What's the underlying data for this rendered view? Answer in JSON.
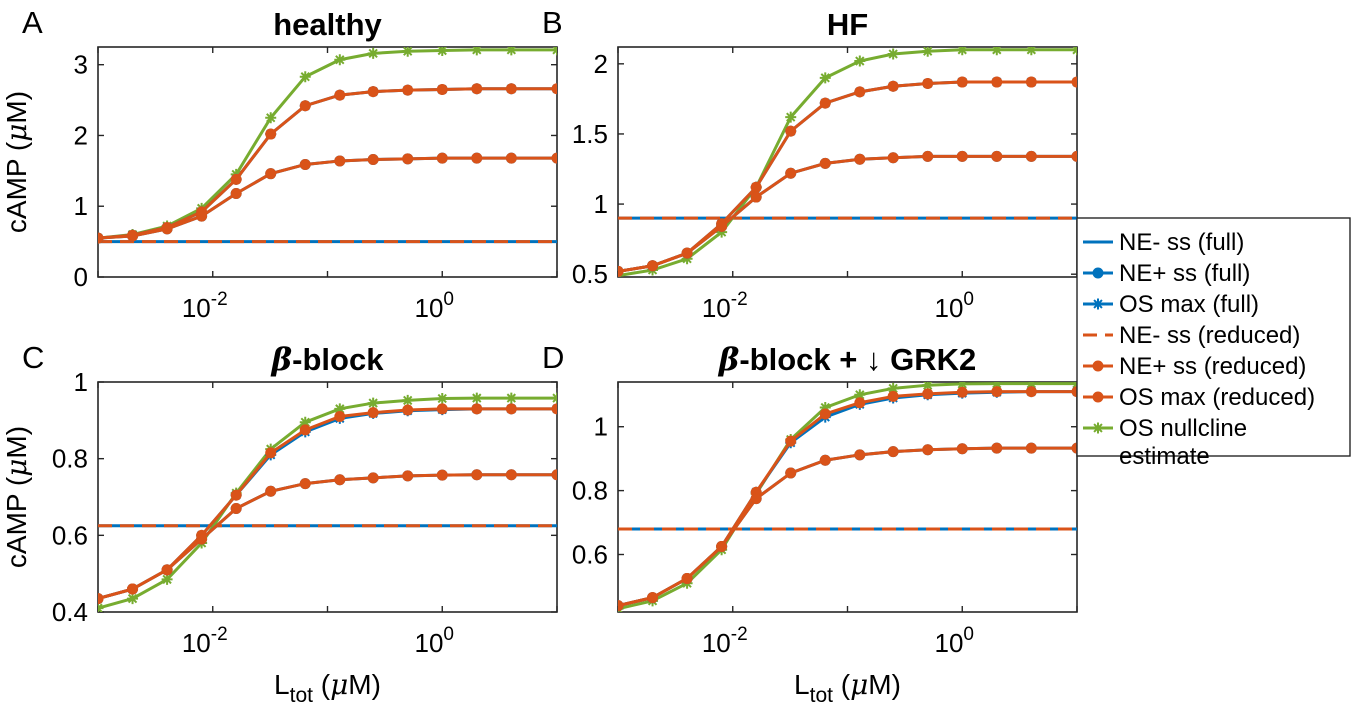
{
  "chart_data": [
    {
      "type": "line",
      "panel_letter": "A",
      "title": "healthy",
      "xscale": "log",
      "xlim": [
        0.001,
        10
      ],
      "ylim": [
        0,
        3.25
      ],
      "xticks": [
        0.01,
        1
      ],
      "xtick_labels": [
        {
          "base": "10",
          "exp": "-2"
        },
        {
          "base": "10",
          "exp": "0"
        }
      ],
      "yticks": [
        0,
        1,
        2,
        3
      ],
      "ytick_labels": [
        "0",
        "1",
        "2",
        "3"
      ],
      "ylabel": {
        "pre": "cAMP (",
        "greek": "μ",
        "post": "M)"
      },
      "xlabel": null,
      "x": [
        0.001,
        0.002,
        0.004,
        0.008,
        0.016,
        0.032,
        0.064,
        0.128,
        0.25,
        0.5,
        1,
        2,
        4,
        10
      ],
      "series": [
        {
          "key": "ne_minus_full",
          "values": [
            0.5,
            0.5,
            0.5,
            0.5,
            0.5,
            0.5,
            0.5,
            0.5,
            0.5,
            0.5,
            0.5,
            0.5,
            0.5,
            0.5
          ]
        },
        {
          "key": "ne_plus_full",
          "values": [
            0.55,
            0.58,
            0.68,
            0.86,
            1.18,
            1.46,
            1.59,
            1.64,
            1.66,
            1.67,
            1.68,
            1.68,
            1.68,
            1.68
          ]
        },
        {
          "key": "os_max_full",
          "values": [
            0.55,
            0.59,
            0.7,
            0.92,
            1.38,
            2.02,
            2.42,
            2.57,
            2.62,
            2.64,
            2.65,
            2.66,
            2.66,
            2.66
          ]
        },
        {
          "key": "ne_minus_red",
          "values": [
            0.5,
            0.5,
            0.5,
            0.5,
            0.5,
            0.5,
            0.5,
            0.5,
            0.5,
            0.5,
            0.5,
            0.5,
            0.5,
            0.5
          ]
        },
        {
          "key": "ne_plus_red",
          "values": [
            0.55,
            0.58,
            0.68,
            0.86,
            1.18,
            1.46,
            1.59,
            1.64,
            1.66,
            1.67,
            1.68,
            1.68,
            1.68,
            1.68
          ]
        },
        {
          "key": "os_max_red",
          "values": [
            0.55,
            0.59,
            0.7,
            0.92,
            1.38,
            2.02,
            2.42,
            2.57,
            2.62,
            2.64,
            2.65,
            2.66,
            2.66,
            2.66
          ]
        },
        {
          "key": "os_nullcline",
          "values": [
            0.55,
            0.6,
            0.72,
            0.97,
            1.45,
            2.25,
            2.83,
            3.07,
            3.16,
            3.19,
            3.2,
            3.21,
            3.21,
            3.21
          ]
        }
      ]
    },
    {
      "type": "line",
      "panel_letter": "B",
      "title": "HF",
      "xscale": "log",
      "xlim": [
        0.001,
        10
      ],
      "ylim": [
        0.48,
        2.12
      ],
      "xticks": [
        0.01,
        1
      ],
      "xtick_labels": [
        {
          "base": "10",
          "exp": "-2"
        },
        {
          "base": "10",
          "exp": "0"
        }
      ],
      "yticks": [
        0.5,
        1,
        1.5,
        2
      ],
      "ytick_labels": [
        "0.5",
        "1",
        "1.5",
        "2"
      ],
      "ylabel": null,
      "xlabel": null,
      "x": [
        0.001,
        0.002,
        0.004,
        0.008,
        0.016,
        0.032,
        0.064,
        0.128,
        0.25,
        0.5,
        1,
        2,
        4,
        10
      ],
      "series": [
        {
          "key": "ne_minus_full",
          "values": [
            0.9,
            0.9,
            0.9,
            0.9,
            0.9,
            0.9,
            0.9,
            0.9,
            0.9,
            0.9,
            0.9,
            0.9,
            0.9,
            0.9
          ]
        },
        {
          "key": "ne_plus_full",
          "values": [
            0.52,
            0.56,
            0.65,
            0.84,
            1.05,
            1.22,
            1.29,
            1.32,
            1.33,
            1.34,
            1.34,
            1.34,
            1.34,
            1.34
          ]
        },
        {
          "key": "os_max_full",
          "values": [
            0.52,
            0.56,
            0.65,
            0.86,
            1.12,
            1.52,
            1.72,
            1.8,
            1.84,
            1.86,
            1.87,
            1.87,
            1.87,
            1.87
          ]
        },
        {
          "key": "ne_minus_red",
          "values": [
            0.9,
            0.9,
            0.9,
            0.9,
            0.9,
            0.9,
            0.9,
            0.9,
            0.9,
            0.9,
            0.9,
            0.9,
            0.9,
            0.9
          ]
        },
        {
          "key": "ne_plus_red",
          "values": [
            0.52,
            0.56,
            0.65,
            0.84,
            1.05,
            1.22,
            1.29,
            1.32,
            1.33,
            1.34,
            1.34,
            1.34,
            1.34,
            1.34
          ]
        },
        {
          "key": "os_max_red",
          "values": [
            0.52,
            0.56,
            0.65,
            0.86,
            1.12,
            1.52,
            1.72,
            1.8,
            1.84,
            1.86,
            1.87,
            1.87,
            1.87,
            1.87
          ]
        },
        {
          "key": "os_nullcline",
          "values": [
            0.49,
            0.53,
            0.61,
            0.8,
            1.12,
            1.62,
            1.9,
            2.02,
            2.07,
            2.09,
            2.1,
            2.1,
            2.1,
            2.1
          ]
        }
      ]
    },
    {
      "type": "line",
      "panel_letter": "C",
      "title": "-block",
      "title_greek": "β",
      "xscale": "log",
      "xlim": [
        0.001,
        10
      ],
      "ylim": [
        0.4,
        1.0
      ],
      "xticks": [
        0.01,
        1
      ],
      "xtick_labels": [
        {
          "base": "10",
          "exp": "-2"
        },
        {
          "base": "10",
          "exp": "0"
        }
      ],
      "yticks": [
        0.4,
        0.6,
        0.8,
        1
      ],
      "ytick_labels": [
        "0.4",
        "0.6",
        "0.8",
        "1"
      ],
      "ylabel": {
        "pre": "cAMP (",
        "greek": "μ",
        "post": "M)"
      },
      "xlabel": {
        "main": "L",
        "sub": "tot",
        "pre": " (",
        "greek": "μ",
        "post": "M)"
      },
      "x": [
        0.001,
        0.002,
        0.004,
        0.008,
        0.016,
        0.032,
        0.064,
        0.128,
        0.25,
        0.5,
        1,
        2,
        4,
        10
      ],
      "series": [
        {
          "key": "ne_minus_full",
          "values": [
            0.625,
            0.625,
            0.625,
            0.625,
            0.625,
            0.625,
            0.625,
            0.625,
            0.625,
            0.625,
            0.625,
            0.625,
            0.625,
            0.625
          ]
        },
        {
          "key": "ne_plus_full",
          "values": [
            0.435,
            0.46,
            0.51,
            0.59,
            0.67,
            0.715,
            0.735,
            0.745,
            0.75,
            0.755,
            0.757,
            0.758,
            0.758,
            0.758
          ]
        },
        {
          "key": "os_max_full",
          "values": [
            0.435,
            0.46,
            0.51,
            0.6,
            0.705,
            0.81,
            0.87,
            0.905,
            0.918,
            0.925,
            0.928,
            0.93,
            0.93,
            0.93
          ]
        },
        {
          "key": "ne_minus_red",
          "values": [
            0.625,
            0.625,
            0.625,
            0.625,
            0.625,
            0.625,
            0.625,
            0.625,
            0.625,
            0.625,
            0.625,
            0.625,
            0.625,
            0.625
          ]
        },
        {
          "key": "ne_plus_red",
          "values": [
            0.435,
            0.46,
            0.51,
            0.59,
            0.67,
            0.715,
            0.735,
            0.745,
            0.75,
            0.755,
            0.757,
            0.758,
            0.758,
            0.758
          ]
        },
        {
          "key": "os_max_red",
          "values": [
            0.435,
            0.46,
            0.51,
            0.6,
            0.705,
            0.815,
            0.875,
            0.91,
            0.92,
            0.927,
            0.93,
            0.93,
            0.93,
            0.93
          ]
        },
        {
          "key": "os_nullcline",
          "values": [
            0.41,
            0.435,
            0.485,
            0.58,
            0.71,
            0.825,
            0.895,
            0.93,
            0.945,
            0.952,
            0.957,
            0.958,
            0.958,
            0.958
          ]
        }
      ]
    },
    {
      "type": "line",
      "panel_letter": "D",
      "title": "-block + ",
      "title_greek": "β",
      "title_arrow": "↓",
      "title_end": " GRK2",
      "xscale": "log",
      "xlim": [
        0.001,
        10
      ],
      "ylim": [
        0.42,
        1.14
      ],
      "xticks": [
        0.01,
        1
      ],
      "xtick_labels": [
        {
          "base": "10",
          "exp": "-2"
        },
        {
          "base": "10",
          "exp": "0"
        }
      ],
      "yticks": [
        0.6,
        0.8,
        1
      ],
      "ytick_labels": [
        "0.6",
        "0.8",
        "1"
      ],
      "ylabel": null,
      "xlabel": {
        "main": "L",
        "sub": "tot",
        "pre": " (",
        "greek": "μ",
        "post": "M)"
      },
      "x": [
        0.001,
        0.002,
        0.004,
        0.008,
        0.016,
        0.032,
        0.064,
        0.128,
        0.25,
        0.5,
        1,
        2,
        4,
        10
      ],
      "series": [
        {
          "key": "ne_minus_full",
          "values": [
            0.68,
            0.68,
            0.68,
            0.68,
            0.68,
            0.68,
            0.68,
            0.68,
            0.68,
            0.68,
            0.68,
            0.68,
            0.68,
            0.68
          ]
        },
        {
          "key": "ne_plus_full",
          "values": [
            0.44,
            0.465,
            0.525,
            0.625,
            0.775,
            0.855,
            0.895,
            0.912,
            0.922,
            0.928,
            0.931,
            0.933,
            0.933,
            0.933
          ]
        },
        {
          "key": "os_max_full",
          "values": [
            0.44,
            0.465,
            0.525,
            0.625,
            0.795,
            0.95,
            1.03,
            1.07,
            1.09,
            1.1,
            1.105,
            1.108,
            1.11,
            1.11
          ]
        },
        {
          "key": "ne_minus_red",
          "values": [
            0.68,
            0.68,
            0.68,
            0.68,
            0.68,
            0.68,
            0.68,
            0.68,
            0.68,
            0.68,
            0.68,
            0.68,
            0.68,
            0.68
          ]
        },
        {
          "key": "ne_plus_red",
          "values": [
            0.44,
            0.465,
            0.525,
            0.625,
            0.775,
            0.855,
            0.895,
            0.912,
            0.922,
            0.928,
            0.931,
            0.933,
            0.933,
            0.933
          ]
        },
        {
          "key": "os_max_red",
          "values": [
            0.44,
            0.465,
            0.525,
            0.625,
            0.795,
            0.955,
            1.04,
            1.075,
            1.095,
            1.103,
            1.108,
            1.11,
            1.11,
            1.11
          ]
        },
        {
          "key": "os_nullcline",
          "values": [
            0.43,
            0.455,
            0.51,
            0.615,
            0.79,
            0.96,
            1.06,
            1.1,
            1.12,
            1.13,
            1.134,
            1.135,
            1.135,
            1.135
          ]
        }
      ]
    }
  ],
  "legend": {
    "position": "right",
    "items": [
      {
        "key": "ne_minus_full",
        "label": "NE- ss (full)",
        "color": "#0072bd",
        "dash": "solid",
        "marker": "none"
      },
      {
        "key": "ne_plus_full",
        "label": "NE+ ss (full)",
        "color": "#0072bd",
        "dash": "solid",
        "marker": "dot"
      },
      {
        "key": "os_max_full",
        "label": "OS max (full)",
        "color": "#0072bd",
        "dash": "solid",
        "marker": "star"
      },
      {
        "key": "ne_minus_red",
        "label": "NE- ss (reduced)",
        "color": "#d95319",
        "dash": "dashed",
        "marker": "none"
      },
      {
        "key": "ne_plus_red",
        "label": "NE+ ss (reduced)",
        "color": "#d95319",
        "dash": "solid",
        "marker": "dot"
      },
      {
        "key": "os_max_red",
        "label": "OS max (reduced)",
        "color": "#d95319",
        "dash": "solid",
        "marker": "dot"
      },
      {
        "key": "os_nullcline",
        "label": "OS nullcline estimate",
        "label_lines": [
          "OS nullcline",
          "estimate"
        ],
        "color": "#77ac30",
        "dash": "solid",
        "marker": "star"
      }
    ]
  }
}
